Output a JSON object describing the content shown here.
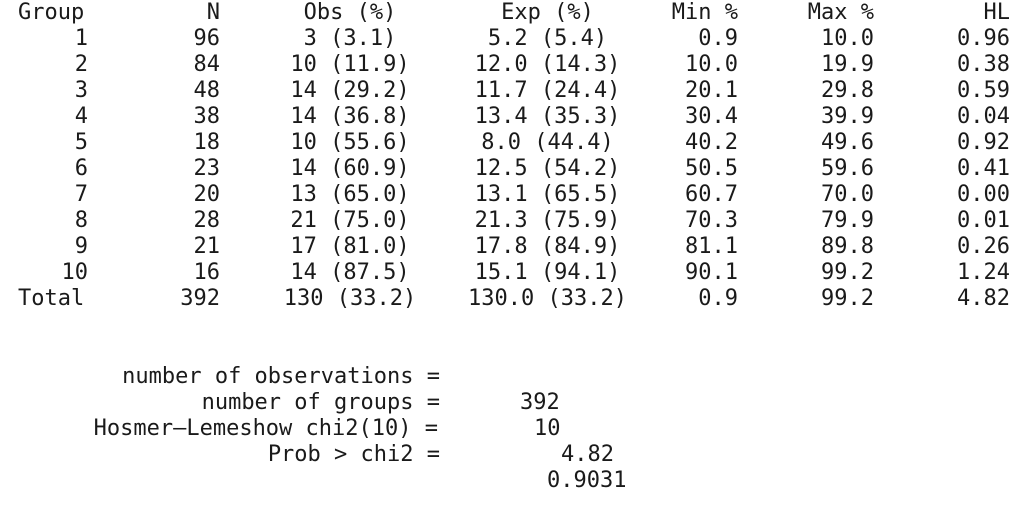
{
  "table": {
    "headers": {
      "group": "Group",
      "n": "N",
      "obs": "Obs (%)",
      "exp": "Exp (%)",
      "min": "Min %",
      "max": "Max %",
      "hl": "HL"
    },
    "rows": [
      {
        "group": "1",
        "n": "96",
        "obs": "3 (3.1)",
        "exp": "5.2 (5.4)",
        "min": "0.9",
        "max": "10.0",
        "hl": "0.96"
      },
      {
        "group": "2",
        "n": "84",
        "obs": "10 (11.9)",
        "exp": "12.0 (14.3)",
        "min": "10.0",
        "max": "19.9",
        "hl": "0.38"
      },
      {
        "group": "3",
        "n": "48",
        "obs": "14 (29.2)",
        "exp": "11.7 (24.4)",
        "min": "20.1",
        "max": "29.8",
        "hl": "0.59"
      },
      {
        "group": "4",
        "n": "38",
        "obs": "14 (36.8)",
        "exp": "13.4 (35.3)",
        "min": "30.4",
        "max": "39.9",
        "hl": "0.04"
      },
      {
        "group": "5",
        "n": "18",
        "obs": "10 (55.6)",
        "exp": "8.0 (44.4)",
        "min": "40.2",
        "max": "49.6",
        "hl": "0.92"
      },
      {
        "group": "6",
        "n": "23",
        "obs": "14 (60.9)",
        "exp": "12.5 (54.2)",
        "min": "50.5",
        "max": "59.6",
        "hl": "0.41"
      },
      {
        "group": "7",
        "n": "20",
        "obs": "13 (65.0)",
        "exp": "13.1 (65.5)",
        "min": "60.7",
        "max": "70.0",
        "hl": "0.00"
      },
      {
        "group": "8",
        "n": "28",
        "obs": "21 (75.0)",
        "exp": "21.3 (75.9)",
        "min": "70.3",
        "max": "79.9",
        "hl": "0.01"
      },
      {
        "group": "9",
        "n": "21",
        "obs": "17 (81.0)",
        "exp": "17.8 (84.9)",
        "min": "81.1",
        "max": "89.8",
        "hl": "0.26"
      },
      {
        "group": "10",
        "n": "16",
        "obs": "14 (87.5)",
        "exp": "15.1 (94.1)",
        "min": "90.1",
        "max": "99.2",
        "hl": "1.24"
      }
    ],
    "total": {
      "group": "Total",
      "n": "392",
      "obs": "130 (33.2)",
      "exp": "130.0 (33.2)",
      "min": "0.9",
      "max": "99.2",
      "hl": "4.82"
    }
  },
  "summary": {
    "observations": {
      "label": "number of observations =",
      "value": "392"
    },
    "groups": {
      "label": "number of groups =",
      "value": "10"
    },
    "chi2": {
      "label": "Hosmer–Lemeshow chi2(10) =",
      "value": "4.82"
    },
    "prob": {
      "label": "Prob > chi2 =",
      "value": "0.9031"
    }
  }
}
